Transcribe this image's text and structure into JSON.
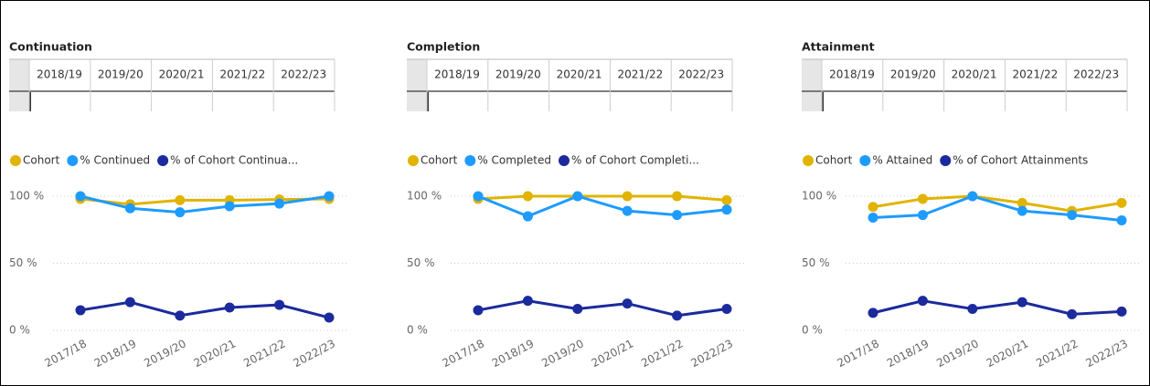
{
  "chart_data": [
    {
      "type": "line",
      "title": "Continuation",
      "table_columns": [
        "2018/19",
        "2019/20",
        "2020/21",
        "2021/22",
        "2022/23"
      ],
      "categories": [
        "2017/18",
        "2018/19",
        "2019/20",
        "2020/21",
        "2021/22",
        "2022/23"
      ],
      "series": [
        {
          "name": "Cohort",
          "color": "#e0b400",
          "values": [
            98,
            94,
            97,
            97,
            97.5,
            98
          ]
        },
        {
          "name": "% Continued",
          "color": "#1e9bff",
          "values": [
            100,
            91,
            88,
            92.5,
            94.5,
            100
          ]
        },
        {
          "name": "% of Cohort  Continua...",
          "color": "#1b2a9c",
          "values": [
            15,
            21,
            11,
            17,
            19,
            9.5
          ]
        }
      ],
      "ylim": [
        0,
        100
      ],
      "yticks": [
        {
          "value": 0,
          "label": "0 %"
        },
        {
          "value": 50,
          "label": "50 %"
        },
        {
          "value": 100,
          "label": "100 %"
        }
      ],
      "grid": true
    },
    {
      "type": "line",
      "title": "Completion",
      "table_columns": [
        "2018/19",
        "2019/20",
        "2020/21",
        "2021/22",
        "2022/23"
      ],
      "categories": [
        "2017/18",
        "2018/19",
        "2019/20",
        "2020/21",
        "2021/22",
        "2022/23"
      ],
      "series": [
        {
          "name": "Cohort",
          "color": "#e0b400",
          "values": [
            98,
            100,
            100,
            100,
            100,
            97
          ]
        },
        {
          "name": "% Completed",
          "color": "#1e9bff",
          "values": [
            100,
            85,
            100,
            89,
            86,
            90
          ]
        },
        {
          "name": "% of Cohort Completi...",
          "color": "#1b2a9c",
          "values": [
            15,
            22,
            16,
            20,
            11,
            16
          ]
        }
      ],
      "ylim": [
        0,
        100
      ],
      "yticks": [
        {
          "value": 0,
          "label": "0 %"
        },
        {
          "value": 50,
          "label": "50 %"
        },
        {
          "value": 100,
          "label": "100 %"
        }
      ],
      "grid": true
    },
    {
      "type": "line",
      "title": "Attainment",
      "table_columns": [
        "2018/19",
        "2019/20",
        "2020/21",
        "2021/22",
        "2022/23"
      ],
      "categories": [
        "2017/18",
        "2018/19",
        "2019/20",
        "2020/21",
        "2021/22",
        "2022/23"
      ],
      "series": [
        {
          "name": "Cohort",
          "color": "#e0b400",
          "values": [
            92,
            98,
            100,
            95,
            89,
            95
          ]
        },
        {
          "name": "% Attained",
          "color": "#1e9bff",
          "values": [
            84,
            86,
            100,
            89,
            86,
            82
          ]
        },
        {
          "name": "% of Cohort Attainments",
          "color": "#1b2a9c",
          "values": [
            13,
            22,
            16,
            21,
            12,
            14
          ]
        }
      ],
      "ylim": [
        0,
        100
      ],
      "yticks": [
        {
          "value": 0,
          "label": "0 %"
        },
        {
          "value": 50,
          "label": "50 %"
        },
        {
          "value": 100,
          "label": "100 %"
        }
      ],
      "grid": true
    }
  ]
}
